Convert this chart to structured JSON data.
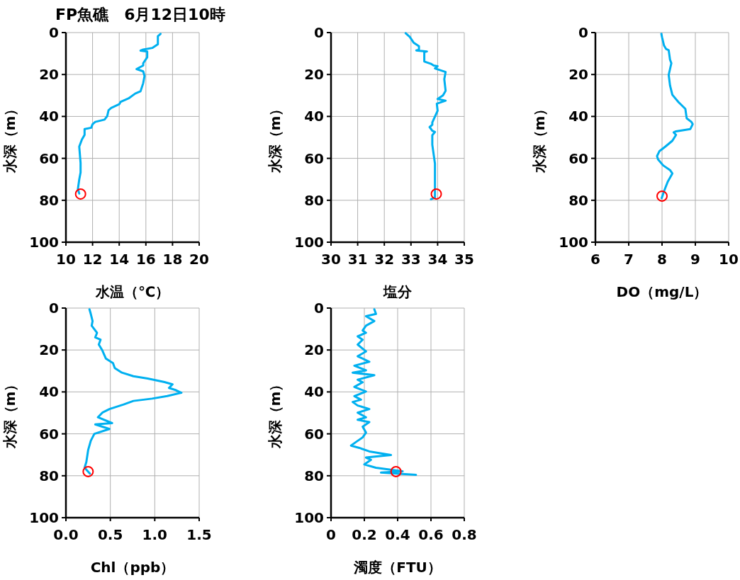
{
  "chart_data": [
    {
      "type": "line",
      "title": "FP魚礁　6月12日10時",
      "xlabel": "水温（℃）",
      "ylabel": "水深（m）",
      "xlim": [
        10,
        20
      ],
      "ylim": [
        100,
        0
      ],
      "xticks": [
        10,
        12,
        14,
        16,
        18,
        20
      ],
      "yticks": [
        0,
        20,
        40,
        60,
        80,
        100
      ],
      "grid": true,
      "series": [
        {
          "color": "#00b0f0",
          "x": [
            17.1,
            16.9,
            16.9,
            16.5,
            15.8,
            15.6,
            16.1,
            16.1,
            15.8,
            15.8,
            15.3,
            15.8,
            15.9,
            15.8,
            15.6,
            15.2,
            14.7,
            14.1,
            14.0,
            13.4,
            13.2,
            13.1,
            12.9,
            12.2,
            12.0,
            11.9,
            11.4,
            11.4,
            11.2,
            11.0,
            11.1,
            11.1,
            11.0,
            10.9,
            11.0
          ],
          "values": [
            0.6,
            1.7,
            5.6,
            7.3,
            8.1,
            8.6,
            9.0,
            11.8,
            14.6,
            15.7,
            17.4,
            18.5,
            20.7,
            24.1,
            28.0,
            29.1,
            31.4,
            33.1,
            34.2,
            35.9,
            37.0,
            39.8,
            41.5,
            42.6,
            43.7,
            45.4,
            46.0,
            48.8,
            51.0,
            54.4,
            62.2,
            66.7,
            70.1,
            74.6,
            76.8
          ]
        },
        {
          "type": "scatter",
          "marker": "circle",
          "color": "#ff0000",
          "x": [
            11.1
          ],
          "values": [
            77
          ]
        }
      ]
    },
    {
      "type": "line",
      "xlabel": "塩分",
      "ylabel": "水深（m）",
      "xlim": [
        30,
        35
      ],
      "ylim": [
        100,
        0
      ],
      "xticks": [
        30,
        31,
        32,
        33,
        34,
        35
      ],
      "yticks": [
        0,
        20,
        40,
        60,
        80,
        100
      ],
      "grid": true,
      "series": [
        {
          "color": "#00b0f0",
          "x": [
            32.8,
            32.95,
            33.1,
            33.3,
            33.3,
            33.2,
            33.6,
            33.5,
            33.5,
            33.75,
            33.85,
            34.0,
            33.9,
            34.3,
            34.25,
            34.3,
            34.2,
            34.0,
            34.3,
            33.97,
            34.0,
            33.9,
            33.8,
            33.8,
            33.7,
            33.8,
            33.9,
            33.8,
            33.8,
            33.9,
            33.9,
            33.9,
            33.75
          ],
          "values": [
            0.3,
            2.0,
            4.8,
            6.5,
            8.2,
            8.5,
            9.0,
            9.3,
            13.8,
            14.9,
            15.7,
            16.0,
            17.1,
            18.8,
            22.2,
            27.8,
            30.0,
            31.7,
            32.5,
            33.9,
            37.3,
            40.1,
            42.9,
            44.0,
            45.1,
            46.8,
            47.4,
            49.0,
            53.5,
            62.5,
            73.7,
            78.7,
            79.5
          ]
        },
        {
          "type": "scatter",
          "marker": "circle",
          "color": "#ff0000",
          "x": [
            33.95
          ],
          "values": [
            77
          ]
        }
      ]
    },
    {
      "type": "line",
      "xlabel": "DO（mg/L）",
      "ylabel": "水深（m）",
      "xlim": [
        6,
        10
      ],
      "ylim": [
        100,
        0
      ],
      "xticks": [
        6,
        7,
        8,
        9,
        10
      ],
      "yticks": [
        0,
        20,
        40,
        60,
        80,
        100
      ],
      "grid": true,
      "series": [
        {
          "color": "#00b0f0",
          "x": [
            7.98,
            8.0,
            8.06,
            8.12,
            8.2,
            8.24,
            8.28,
            8.24,
            8.2,
            8.24,
            8.31,
            8.49,
            8.7,
            8.74,
            8.88,
            8.92,
            8.85,
            8.42,
            8.35,
            8.42,
            8.31,
            8.1,
            7.92,
            7.85,
            7.88,
            8.03,
            8.24,
            8.31,
            8.17,
            8.06,
            7.99
          ],
          "values": [
            0.6,
            2.2,
            6.2,
            7.8,
            8.4,
            12.9,
            14.6,
            17.4,
            20.2,
            25.2,
            29.7,
            33.1,
            36.4,
            40.9,
            42.6,
            43.7,
            46.0,
            47.1,
            47.6,
            48.8,
            51.6,
            54.4,
            56.6,
            58.9,
            60.5,
            63.3,
            65.6,
            67.2,
            71.2,
            75.7,
            79.0
          ]
        },
        {
          "type": "scatter",
          "marker": "circle",
          "color": "#ff0000",
          "x": [
            8.0
          ],
          "values": [
            78
          ]
        }
      ]
    },
    {
      "type": "line",
      "xlabel": "Chl（ppb）",
      "ylabel": "水深（m）",
      "xlim": [
        0,
        1.5
      ],
      "ylim": [
        100,
        0
      ],
      "xticks": [
        {
          "value": 0,
          "label": "0.0"
        },
        {
          "value": 0.5,
          "label": "0.5"
        },
        {
          "value": 1,
          "label": "1.0"
        },
        {
          "value": 1.5,
          "label": "1.5"
        }
      ],
      "yticks": [
        0,
        20,
        40,
        60,
        80,
        100
      ],
      "grid": true,
      "series": [
        {
          "color": "#00b0f0",
          "x": [
            0.265,
            0.28,
            0.3,
            0.29,
            0.35,
            0.33,
            0.39,
            0.37,
            0.41,
            0.45,
            0.53,
            0.55,
            0.63,
            0.76,
            0.92,
            1.11,
            1.2,
            1.16,
            1.24,
            1.3,
            1.14,
            0.97,
            0.76,
            0.65,
            0.49,
            0.41,
            0.36,
            0.52,
            0.33,
            0.49,
            0.32,
            0.28,
            0.25,
            0.23,
            0.21,
            0.27
          ],
          "values": [
            0.6,
            2.8,
            6.2,
            8.4,
            11.8,
            14.0,
            15.1,
            17.4,
            20.2,
            24.1,
            26.3,
            28.6,
            30.8,
            32.5,
            33.6,
            35.3,
            36.4,
            38.1,
            39.2,
            40.4,
            42.0,
            43.2,
            44.3,
            46.0,
            48.2,
            49.9,
            52.1,
            54.9,
            55.5,
            57.7,
            60.0,
            63.3,
            67.8,
            73.4,
            76.2,
            79.0
          ]
        },
        {
          "type": "scatter",
          "marker": "circle",
          "color": "#ff0000",
          "x": [
            0.25
          ],
          "values": [
            78
          ]
        }
      ]
    },
    {
      "type": "line",
      "xlabel": "濁度（FTU）",
      "ylabel": "水深（m）",
      "xlim": [
        0,
        0.8
      ],
      "ylim": [
        100,
        0
      ],
      "xticks": [
        0,
        0.2,
        0.4,
        0.6,
        0.8
      ],
      "yticks": [
        0,
        20,
        40,
        60,
        80,
        100
      ],
      "grid": true,
      "series": [
        {
          "color": "#00b0f0",
          "x": [
            0.26,
            0.27,
            0.21,
            0.26,
            0.21,
            0.19,
            0.21,
            0.16,
            0.19,
            0.16,
            0.21,
            0.16,
            0.23,
            0.14,
            0.21,
            0.13,
            0.26,
            0.16,
            0.19,
            0.14,
            0.21,
            0.14,
            0.18,
            0.13,
            0.16,
            0.23,
            0.16,
            0.21,
            0.16,
            0.23,
            0.19,
            0.21,
            0.19,
            0.15,
            0.12,
            0.17,
            0.23,
            0.36,
            0.21,
            0.24,
            0.2,
            0.27,
            0.43,
            0.3,
            0.51
          ],
          "values": [
            0.6,
            2.8,
            3.9,
            6.2,
            8.4,
            10.7,
            11.8,
            13.5,
            15.1,
            17.4,
            20.7,
            23.0,
            25.6,
            27.5,
            29.7,
            30.8,
            32.0,
            34.2,
            35.4,
            37.6,
            39.8,
            42.0,
            43.7,
            44.8,
            46.5,
            48.2,
            49.9,
            52.1,
            53.3,
            54.4,
            56.6,
            59.4,
            61.7,
            63.9,
            65.6,
            66.7,
            68.4,
            70.1,
            71.3,
            72.4,
            74.6,
            76.2,
            77.9,
            78.5,
            79.6
          ]
        },
        {
          "type": "scatter",
          "marker": "circle",
          "color": "#ff0000",
          "x": [
            0.39
          ],
          "values": [
            78
          ]
        }
      ]
    }
  ]
}
